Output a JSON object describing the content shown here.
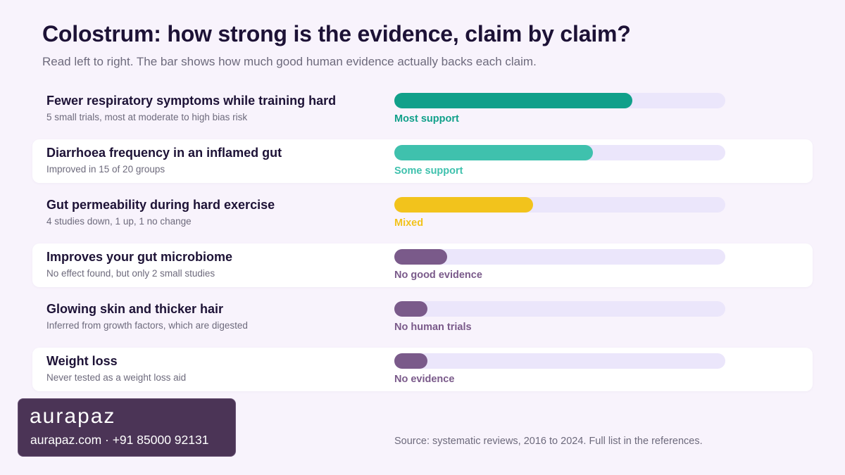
{
  "title": "Colostrum: how strong is the evidence, claim by claim?",
  "subtitle": "Read left to right. The bar shows how much good human evidence actually backs each claim.",
  "chart_data": {
    "type": "bar",
    "orientation": "horizontal",
    "xlim": [
      0,
      100
    ],
    "grid": false,
    "rows": [
      {
        "claim": "Fewer respiratory symptoms while training hard",
        "note": "5 small trials, most at moderate to high bias risk",
        "rating": "Most support",
        "value": 72,
        "color": "#11a08a"
      },
      {
        "claim": "Diarrhoea frequency in an inflamed gut",
        "note": "Improved in 15 of 20 groups",
        "rating": "Some support",
        "value": 60,
        "color": "#3fc1ad"
      },
      {
        "claim": "Gut permeability during hard exercise",
        "note": "4 studies down, 1 up, 1 no change",
        "rating": "Mixed",
        "value": 42,
        "color": "#f2c31c"
      },
      {
        "claim": "Improves your gut microbiome",
        "note": "No effect found, but only 2 small studies",
        "rating": "No good evidence",
        "value": 16,
        "color": "#7a5a8a"
      },
      {
        "claim": "Glowing skin and thicker hair",
        "note": "Inferred from growth factors, which are digested",
        "rating": "No human trials",
        "value": 10,
        "color": "#7a5a8a"
      },
      {
        "claim": "Weight loss",
        "note": "Never tested as a weight loss aid",
        "rating": "No evidence",
        "value": 10,
        "color": "#7a5a8a"
      }
    ]
  },
  "brand": {
    "logo": "aurapaz",
    "contact": "aurapaz.com · +91 85000 92131"
  },
  "source": "Source: systematic reviews, 2016 to 2024. Full list in the references.",
  "colors": {
    "background": "#f8f3fc",
    "track": "#ebe6fb",
    "title": "#1d1236",
    "muted": "#6d6a7c",
    "brand_panel": "#4b3456"
  }
}
